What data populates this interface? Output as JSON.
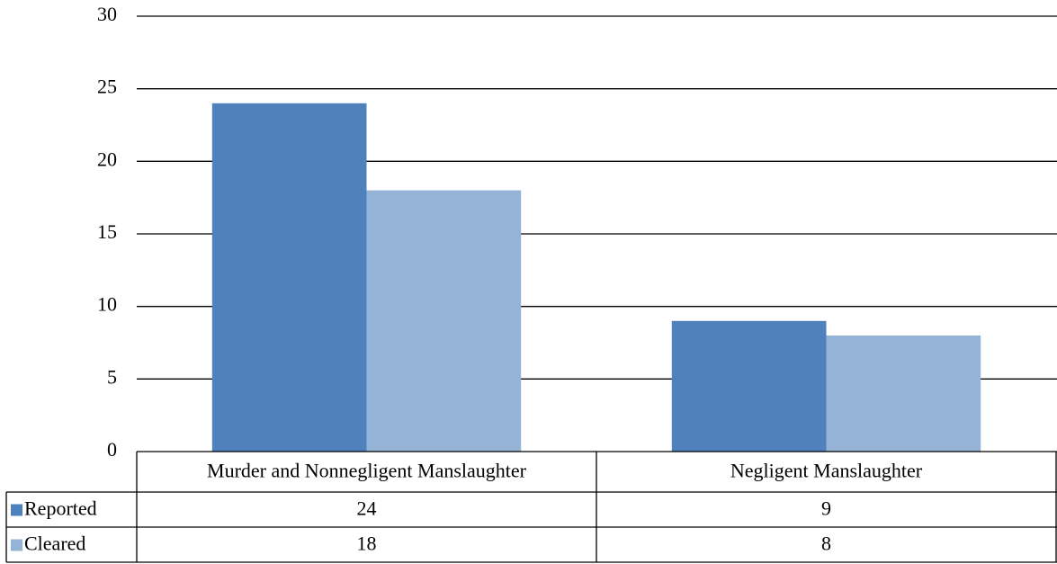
{
  "chart_data": {
    "type": "bar",
    "categories": [
      "Murder and Nonnegligent Manslaughter",
      "Negligent Manslaughter"
    ],
    "series": [
      {
        "name": "Reported",
        "color": "#4f81bd",
        "values": [
          24,
          9
        ]
      },
      {
        "name": "Cleared",
        "color": "#95b3d7",
        "values": [
          18,
          8
        ]
      }
    ],
    "ylim": [
      0,
      30
    ],
    "yticks": [
      0,
      5,
      10,
      15,
      20,
      25,
      30
    ],
    "grid": true
  }
}
